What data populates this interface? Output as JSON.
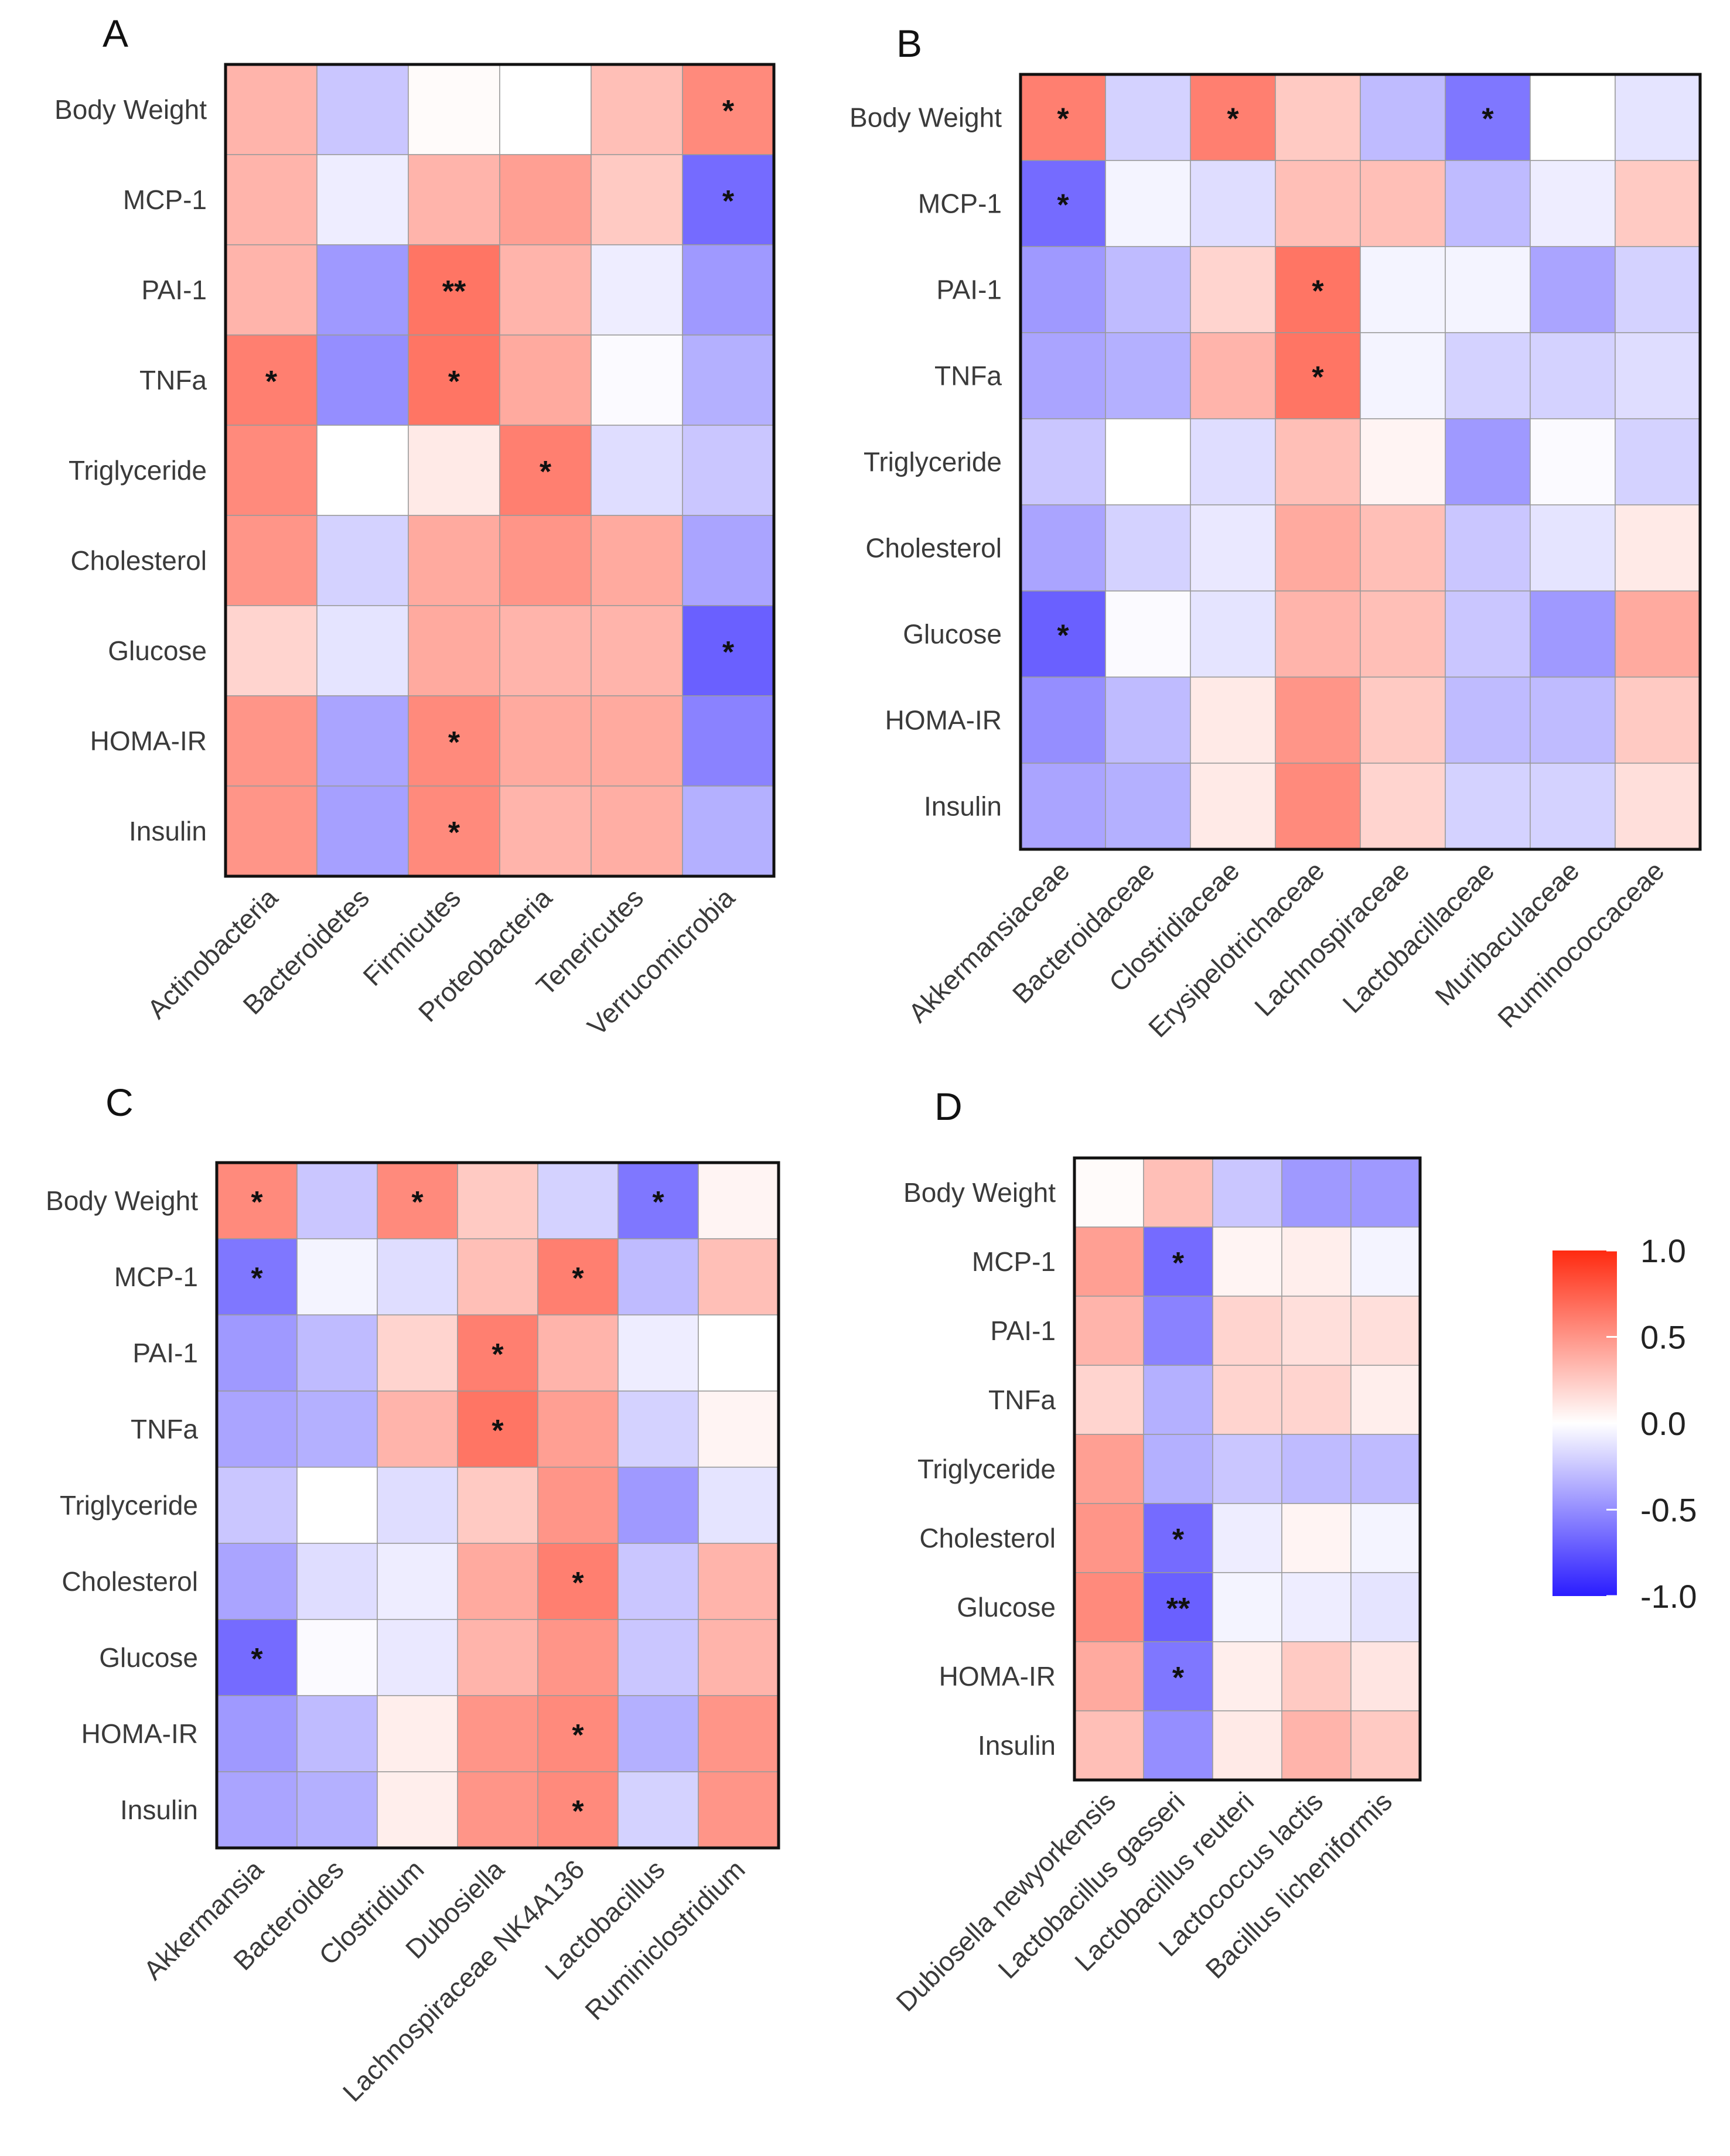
{
  "figure": {
    "colorbar": {
      "colors": {
        "low": "#2a1cff",
        "mid": "#ffffff",
        "high": "#ff2a10"
      },
      "ticks": [
        "1.0",
        "0.5",
        "0.0",
        "-0.5",
        "-1.0"
      ],
      "range": [
        -1.0,
        1.0
      ]
    }
  },
  "chart_data": [
    {
      "type": "heatmap",
      "panel": "A",
      "rows": [
        "Body Weight",
        "MCP-1",
        "PAI-1",
        "TNFa",
        "Triglyceride",
        "Cholesterol",
        "Glucose",
        "HOMA-IR",
        "Insulin"
      ],
      "columns": [
        "Actinobacteria",
        "Bacteroidetes",
        "Firmicutes",
        "Proteobacteria",
        "Tenericutes",
        "Verrucomicrobia"
      ],
      "values": [
        [
          0.35,
          -0.25,
          0.02,
          0.0,
          0.3,
          0.55
        ],
        [
          0.35,
          -0.08,
          0.35,
          0.45,
          0.25,
          -0.65
        ],
        [
          0.35,
          -0.45,
          0.65,
          0.35,
          -0.08,
          -0.45
        ],
        [
          0.6,
          -0.5,
          0.65,
          0.4,
          -0.02,
          -0.35
        ],
        [
          0.55,
          0.0,
          0.1,
          0.6,
          -0.15,
          -0.25
        ],
        [
          0.5,
          -0.2,
          0.4,
          0.5,
          0.4,
          -0.4
        ],
        [
          0.2,
          -0.12,
          0.4,
          0.35,
          0.35,
          -0.7
        ],
        [
          0.5,
          -0.4,
          0.55,
          0.4,
          0.4,
          -0.55
        ],
        [
          0.5,
          -0.42,
          0.55,
          0.35,
          0.38,
          -0.35
        ]
      ],
      "significance": [
        [
          "",
          "",
          "",
          "",
          "",
          "*"
        ],
        [
          "",
          "",
          "",
          "",
          "",
          "*"
        ],
        [
          "",
          "",
          "**",
          "",
          "",
          ""
        ],
        [
          "*",
          "",
          "*",
          "",
          "",
          ""
        ],
        [
          "",
          "",
          "",
          "*",
          "",
          ""
        ],
        [
          "",
          "",
          "",
          "",
          "",
          ""
        ],
        [
          "",
          "",
          "",
          "",
          "",
          "*"
        ],
        [
          "",
          "",
          "*",
          "",
          "",
          ""
        ],
        [
          "",
          "",
          "*",
          "",
          "",
          ""
        ]
      ],
      "color_range": [
        -1.0,
        1.0
      ]
    },
    {
      "type": "heatmap",
      "panel": "B",
      "rows": [
        "Body Weight",
        "MCP-1",
        "PAI-1",
        "TNFa",
        "Triglyceride",
        "Cholesterol",
        "Glucose",
        "HOMA-IR",
        "Insulin"
      ],
      "columns": [
        "Akkermansiaceae",
        "Bacteroidaceae",
        "Clostridiaceae",
        "Erysipelotrichaceae",
        "Lachnospiraceae",
        "Lactobacillaceae",
        "Muribaculaceae",
        "Ruminococcaceae"
      ],
      "values": [
        [
          0.6,
          -0.2,
          0.6,
          0.25,
          -0.3,
          -0.6,
          0.0,
          -0.12
        ],
        [
          -0.65,
          -0.05,
          -0.15,
          0.3,
          0.3,
          -0.3,
          -0.08,
          0.25
        ],
        [
          -0.45,
          -0.3,
          0.2,
          0.65,
          -0.05,
          -0.05,
          -0.4,
          -0.2
        ],
        [
          -0.4,
          -0.35,
          0.35,
          0.65,
          -0.05,
          -0.2,
          -0.2,
          -0.15
        ],
        [
          -0.25,
          0.0,
          -0.15,
          0.3,
          0.05,
          -0.45,
          -0.02,
          -0.2
        ],
        [
          -0.4,
          -0.2,
          -0.1,
          0.4,
          0.3,
          -0.25,
          -0.12,
          0.1
        ],
        [
          -0.7,
          -0.02,
          -0.12,
          0.35,
          0.3,
          -0.25,
          -0.45,
          0.4
        ],
        [
          -0.5,
          -0.3,
          0.1,
          0.5,
          0.25,
          -0.3,
          -0.3,
          0.25
        ],
        [
          -0.4,
          -0.35,
          0.1,
          0.55,
          0.2,
          -0.2,
          -0.2,
          0.15
        ]
      ],
      "significance": [
        [
          "*",
          "",
          "*",
          "",
          "",
          "*",
          "",
          ""
        ],
        [
          "*",
          "",
          "",
          "",
          "",
          "",
          "",
          ""
        ],
        [
          "",
          "",
          "",
          "*",
          "",
          "",
          "",
          ""
        ],
        [
          "",
          "",
          "",
          "*",
          "",
          "",
          "",
          ""
        ],
        [
          "",
          "",
          "",
          "",
          "",
          "",
          "",
          ""
        ],
        [
          "",
          "",
          "",
          "",
          "",
          "",
          "",
          ""
        ],
        [
          "*",
          "",
          "",
          "",
          "",
          "",
          "",
          ""
        ],
        [
          "",
          "",
          "",
          "",
          "",
          "",
          "",
          ""
        ],
        [
          "",
          "",
          "",
          "",
          "",
          "",
          "",
          ""
        ]
      ],
      "color_range": [
        -1.0,
        1.0
      ]
    },
    {
      "type": "heatmap",
      "panel": "C",
      "rows": [
        "Body Weight",
        "MCP-1",
        "PAI-1",
        "TNFa",
        "Triglyceride",
        "Cholesterol",
        "Glucose",
        "HOMA-IR",
        "Insulin"
      ],
      "columns": [
        "Akkermansia",
        "Bacteroides",
        "Clostridium",
        "Dubosiella",
        "Lachnospiraceae NK4A136",
        "Lactobacillus",
        "Ruminiclostridium"
      ],
      "values": [
        [
          0.55,
          -0.25,
          0.55,
          0.25,
          -0.2,
          -0.6,
          0.05
        ],
        [
          -0.6,
          -0.05,
          -0.15,
          0.3,
          0.6,
          -0.3,
          0.3
        ],
        [
          -0.45,
          -0.3,
          0.2,
          0.6,
          0.35,
          -0.08,
          0.0
        ],
        [
          -0.4,
          -0.35,
          0.35,
          0.65,
          0.45,
          -0.2,
          0.05
        ],
        [
          -0.25,
          0.0,
          -0.15,
          0.25,
          0.5,
          -0.45,
          -0.12
        ],
        [
          -0.4,
          -0.15,
          -0.08,
          0.4,
          0.6,
          -0.25,
          0.35
        ],
        [
          -0.65,
          -0.02,
          -0.1,
          0.35,
          0.5,
          -0.25,
          0.35
        ],
        [
          -0.45,
          -0.3,
          0.08,
          0.5,
          0.55,
          -0.35,
          0.5
        ],
        [
          -0.4,
          -0.35,
          0.08,
          0.5,
          0.55,
          -0.2,
          0.5
        ]
      ],
      "significance": [
        [
          "*",
          "",
          "*",
          "",
          "",
          "*",
          ""
        ],
        [
          "*",
          "",
          "",
          "",
          "*",
          "",
          ""
        ],
        [
          "",
          "",
          "",
          "*",
          "",
          "",
          ""
        ],
        [
          "",
          "",
          "",
          "*",
          "",
          "",
          ""
        ],
        [
          "",
          "",
          "",
          "",
          "",
          "",
          ""
        ],
        [
          "",
          "",
          "",
          "",
          "*",
          "",
          ""
        ],
        [
          "*",
          "",
          "",
          "",
          "",
          "",
          ""
        ],
        [
          "",
          "",
          "",
          "",
          "*",
          "",
          ""
        ],
        [
          "",
          "",
          "",
          "",
          "*",
          "",
          ""
        ]
      ],
      "color_range": [
        -1.0,
        1.0
      ]
    },
    {
      "type": "heatmap",
      "panel": "D",
      "rows": [
        "Body Weight",
        "MCP-1",
        "PAI-1",
        "TNFa",
        "Triglyceride",
        "Cholesterol",
        "Glucose",
        "HOMA-IR",
        "Insulin"
      ],
      "columns": [
        "Dubiosella newyorkensis",
        "Lactobacillus gasseri",
        "Lactobacillus reuteri",
        "Lactococcus lactis",
        "Bacillus licheniformis"
      ],
      "values": [
        [
          0.02,
          0.3,
          -0.25,
          -0.45,
          -0.45
        ],
        [
          0.45,
          -0.65,
          0.05,
          0.08,
          -0.05
        ],
        [
          0.35,
          -0.55,
          0.2,
          0.15,
          0.15
        ],
        [
          0.2,
          -0.35,
          0.2,
          0.2,
          0.08
        ],
        [
          0.45,
          -0.35,
          -0.25,
          -0.3,
          -0.3
        ],
        [
          0.5,
          -0.65,
          -0.08,
          0.05,
          -0.05
        ],
        [
          0.55,
          -0.7,
          -0.05,
          -0.08,
          -0.12
        ],
        [
          0.4,
          -0.6,
          0.08,
          0.25,
          0.12
        ],
        [
          0.3,
          -0.5,
          0.1,
          0.35,
          0.25
        ]
      ],
      "significance": [
        [
          "",
          "",
          "",
          "",
          ""
        ],
        [
          "",
          "*",
          "",
          "",
          ""
        ],
        [
          "",
          "",
          "",
          "",
          ""
        ],
        [
          "",
          "",
          "",
          "",
          ""
        ],
        [
          "",
          "",
          "",
          "",
          ""
        ],
        [
          "",
          "*",
          "",
          "",
          ""
        ],
        [
          "",
          "**",
          "",
          "",
          ""
        ],
        [
          "",
          "*",
          "",
          "",
          ""
        ],
        [
          "",
          "",
          "",
          "",
          ""
        ]
      ],
      "color_range": [
        -1.0,
        1.0
      ]
    }
  ]
}
